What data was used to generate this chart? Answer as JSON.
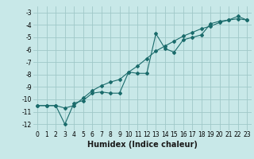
{
  "xlabel": "Humidex (Indice chaleur)",
  "ylabel": "",
  "background_color": "#c8e8e8",
  "grid_color": "#a0c8c8",
  "line_color": "#1a6b6b",
  "x_data_line1": [
    0,
    1,
    2,
    3,
    4,
    5,
    6,
    7,
    8,
    9,
    10,
    11,
    12,
    13,
    14,
    15,
    16,
    17,
    18,
    19,
    20,
    21,
    22,
    23
  ],
  "y_data_line1": [
    -10.5,
    -10.5,
    -10.5,
    -12.0,
    -10.3,
    -10.1,
    -9.5,
    -9.4,
    -9.5,
    -9.5,
    -7.8,
    -7.9,
    -7.9,
    -4.7,
    -5.9,
    -6.2,
    -5.2,
    -5.0,
    -4.8,
    -3.9,
    -3.7,
    -3.6,
    -3.3,
    -3.6
  ],
  "x_data_line2": [
    0,
    1,
    2,
    3,
    4,
    5,
    6,
    7,
    8,
    9,
    10,
    11,
    12,
    13,
    14,
    15,
    16,
    17,
    18,
    19,
    20,
    21,
    22,
    23
  ],
  "y_data_line2": [
    -10.5,
    -10.5,
    -10.5,
    -10.7,
    -10.5,
    -9.9,
    -9.3,
    -8.9,
    -8.6,
    -8.4,
    -7.8,
    -7.3,
    -6.7,
    -6.1,
    -5.7,
    -5.3,
    -4.9,
    -4.6,
    -4.3,
    -4.1,
    -3.8,
    -3.6,
    -3.5,
    -3.6
  ],
  "ylim": [
    -12.5,
    -2.5
  ],
  "xlim": [
    -0.5,
    23.5
  ],
  "yticks": [
    -3,
    -4,
    -5,
    -6,
    -7,
    -8,
    -9,
    -10,
    -11,
    -12
  ],
  "xticks": [
    0,
    1,
    2,
    3,
    4,
    5,
    6,
    7,
    8,
    9,
    10,
    11,
    12,
    13,
    14,
    15,
    16,
    17,
    18,
    19,
    20,
    21,
    22,
    23
  ],
  "marker": "D",
  "markersize": 2,
  "linewidth": 0.8,
  "xlabel_fontsize": 7,
  "tick_fontsize": 5.5
}
